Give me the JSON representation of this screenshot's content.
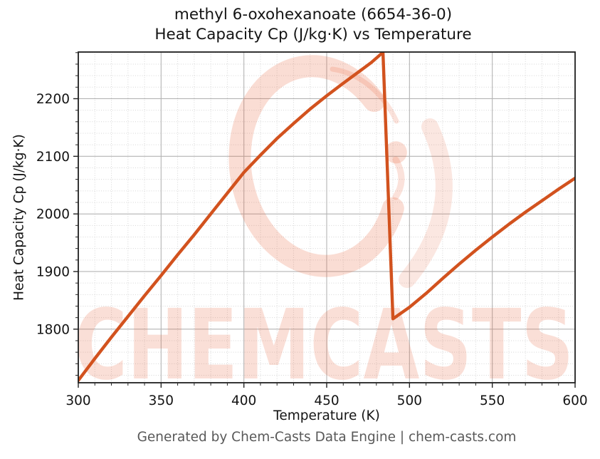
{
  "header": {
    "title_line1": "methyl 6-oxohexanoate (6654-36-0)",
    "title_line2": "Heat Capacity Cp (J/kg·K) vs Temperature"
  },
  "footer": {
    "text": "Generated by Chem-Casts Data Engine | chem-casts.com"
  },
  "watermark": {
    "text": "CHEMCASTS",
    "logo": "chemcasts-c-swoosh-logo",
    "color": "#e76035"
  },
  "chart_data": {
    "type": "line",
    "title": "methyl 6-oxohexanoate (6654-36-0) — Heat Capacity Cp (J/kg·K) vs Temperature",
    "xlabel": "Temperature (K)",
    "ylabel": "Heat Capacity Cp (J/kg·K)",
    "xlim": [
      300,
      600
    ],
    "ylim": [
      1707,
      2281
    ],
    "xticks": [
      300,
      350,
      400,
      450,
      500,
      550,
      600
    ],
    "yticks": [
      1800,
      1900,
      2000,
      2100,
      2200
    ],
    "x_minor_step": 10,
    "y_minor_step": 20,
    "grid": true,
    "legend": "none",
    "line_color": "#d2521e",
    "major_grid_color": "#b4b4b4",
    "minor_grid_color": "#d6d6d6",
    "series": [
      {
        "name": "Heat Capacity Cp",
        "points": [
          [
            300,
            1711
          ],
          [
            310,
            1749
          ],
          [
            320,
            1786
          ],
          [
            330,
            1822
          ],
          [
            340,
            1858
          ],
          [
            350,
            1893
          ],
          [
            360,
            1929
          ],
          [
            370,
            1964
          ],
          [
            380,
            2000
          ],
          [
            390,
            2036
          ],
          [
            400,
            2072
          ],
          [
            410,
            2102
          ],
          [
            420,
            2131
          ],
          [
            430,
            2157
          ],
          [
            440,
            2182
          ],
          [
            450,
            2205
          ],
          [
            460,
            2227
          ],
          [
            470,
            2248
          ],
          [
            477,
            2263
          ],
          [
            483,
            2278
          ],
          [
            484,
            2280
          ],
          [
            490,
            1818
          ],
          [
            495,
            1828
          ],
          [
            500,
            1838
          ],
          [
            510,
            1862
          ],
          [
            520,
            1888
          ],
          [
            530,
            1913
          ],
          [
            540,
            1937
          ],
          [
            550,
            1960
          ],
          [
            560,
            1982
          ],
          [
            570,
            2003
          ],
          [
            580,
            2023
          ],
          [
            590,
            2043
          ],
          [
            600,
            2062
          ]
        ]
      }
    ],
    "annotations": {
      "peak": {
        "x": 484,
        "y": 2280
      },
      "drop_minimum": {
        "x": 490,
        "y": 1818
      }
    }
  }
}
